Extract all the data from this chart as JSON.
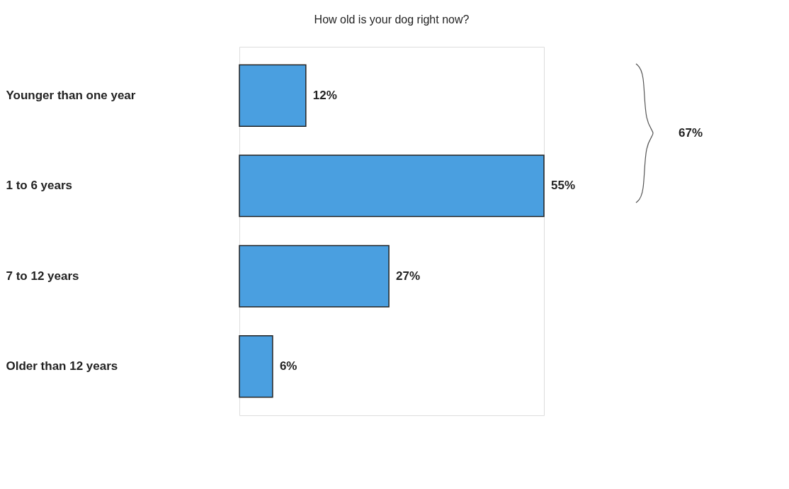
{
  "chart_data": {
    "type": "bar",
    "orientation": "horizontal",
    "title": "How old is your dog right now?",
    "categories": [
      "Younger than one year",
      "1 to 6 years",
      "7 to 12 years",
      "Older than 12 years"
    ],
    "values": [
      12,
      55,
      27,
      6
    ],
    "color": "#4a9fe0",
    "value_labels": [
      "12%",
      "55%",
      "27%",
      "6%"
    ],
    "annotations": [
      "67%"
    ]
  }
}
